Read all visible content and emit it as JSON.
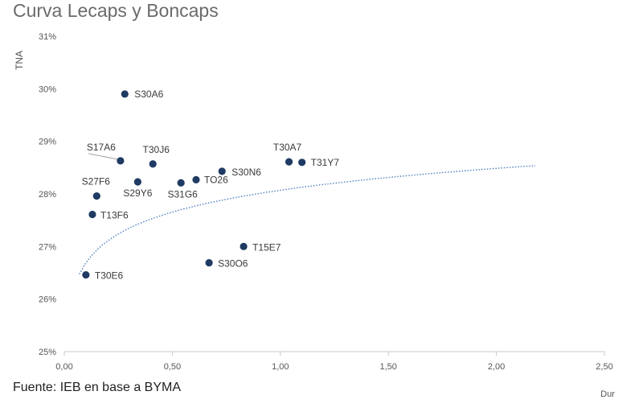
{
  "chart_data": {
    "type": "scatter",
    "title": "Curva Lecaps y Boncaps",
    "source": "Fuente: IEB en base a BYMA",
    "xlabel": "Dur",
    "ylabel": "TNA",
    "xlim": [
      0,
      2.5
    ],
    "ylim": [
      25,
      31
    ],
    "x_ticks": [
      "0,00",
      "0,50",
      "1,00",
      "1,50",
      "2,00",
      "2,50"
    ],
    "y_ticks": [
      "25%",
      "26%",
      "27%",
      "28%",
      "29%",
      "30%",
      "31%"
    ],
    "marker_color": "#1f3b63",
    "trend_color": "#4f7fbf",
    "points": [
      {
        "name": "S30A6",
        "x": 0.28,
        "y": 29.9
      },
      {
        "name": "S17A6",
        "x": 0.26,
        "y": 28.63
      },
      {
        "name": "T30J6",
        "x": 0.41,
        "y": 28.57
      },
      {
        "name": "S29Y6",
        "x": 0.34,
        "y": 28.23
      },
      {
        "name": "S31G6",
        "x": 0.54,
        "y": 28.21
      },
      {
        "name": "TO26",
        "x": 0.61,
        "y": 28.27
      },
      {
        "name": "S30N6",
        "x": 0.73,
        "y": 28.43
      },
      {
        "name": "T30A7",
        "x": 1.04,
        "y": 28.61
      },
      {
        "name": "T31Y7",
        "x": 1.1,
        "y": 28.6
      },
      {
        "name": "S27F6",
        "x": 0.15,
        "y": 27.96
      },
      {
        "name": "T13F6",
        "x": 0.13,
        "y": 27.61
      },
      {
        "name": "T15E7",
        "x": 0.83,
        "y": 27.0
      },
      {
        "name": "S30O6",
        "x": 0.67,
        "y": 26.69
      },
      {
        "name": "T30E6",
        "x": 0.1,
        "y": 26.46
      }
    ],
    "trendline": {
      "type": "logarithmic",
      "x_range": [
        0.07,
        2.18
      ],
      "a": 28.07,
      "b": 0.6
    }
  }
}
